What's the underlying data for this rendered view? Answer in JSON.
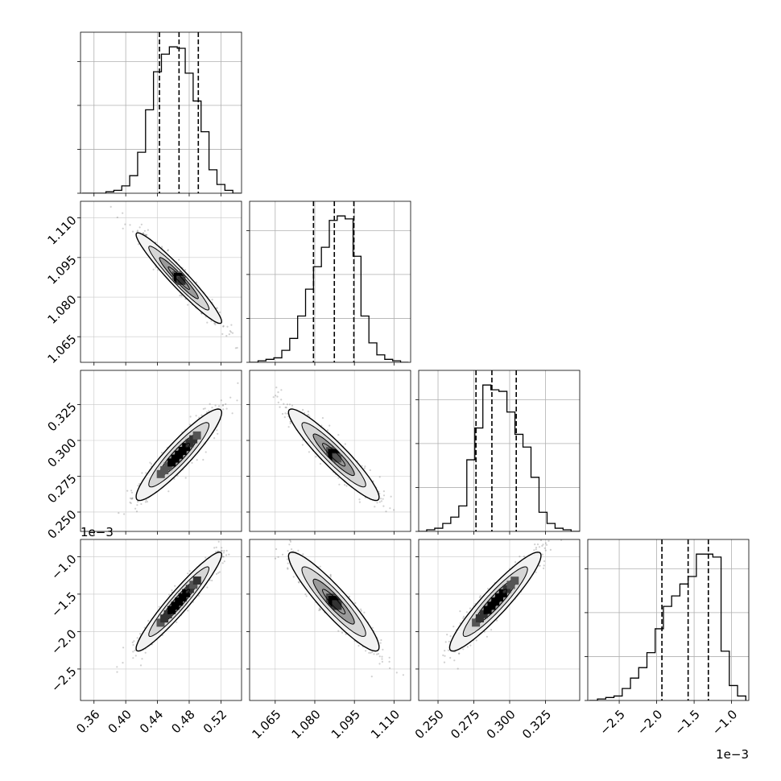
{
  "chart_data": {
    "type": "corner",
    "grid": true,
    "parameters": [
      {
        "range": [
          0.343,
          0.546
        ],
        "ticks": [
          0.36,
          0.4,
          0.44,
          0.48,
          0.52
        ],
        "tick_labels": [
          "0.36",
          "0.40",
          "0.44",
          "0.48",
          "0.52"
        ],
        "quantiles": [
          0.4425,
          0.4672,
          0.4915
        ],
        "hist": {
          "edges": [
            0.345,
            0.355,
            0.365,
            0.375,
            0.385,
            0.395,
            0.405,
            0.415,
            0.425,
            0.435,
            0.445,
            0.455,
            0.465,
            0.475,
            0.485,
            0.495,
            0.505,
            0.515,
            0.525,
            0.535,
            0.545
          ],
          "counts": [
            0,
            0,
            0,
            1,
            2,
            5,
            12,
            28,
            57,
            83,
            95,
            100,
            99,
            82,
            63,
            42,
            16,
            6,
            2,
            0
          ]
        }
      },
      {
        "range": [
          1.0553,
          1.1163
        ],
        "ticks": [
          1.065,
          1.08,
          1.095,
          1.11
        ],
        "tick_labels": [
          "1.065",
          "1.080",
          "1.095",
          "1.110"
        ],
        "quantiles": [
          1.0795,
          1.0874,
          1.0948
        ],
        "hist": {
          "edges": [
            1.0555,
            1.0585,
            1.0615,
            1.0645,
            1.0675,
            1.0705,
            1.0735,
            1.0765,
            1.0795,
            1.0825,
            1.0855,
            1.0885,
            1.0915,
            1.0945,
            1.0975,
            1.1005,
            1.1035,
            1.1065,
            1.1095,
            1.1125,
            1.1155
          ],
          "counts": [
            0,
            1,
            2,
            3,
            8,
            16,
            31,
            49,
            64,
            77,
            95,
            98,
            96,
            71,
            31,
            13,
            5,
            2,
            1,
            0
          ]
        }
      },
      {
        "range": [
          0.2365,
          0.3489
        ],
        "ticks": [
          0.25,
          0.275,
          0.3,
          0.325
        ],
        "tick_labels": [
          "0.250",
          "0.275",
          "0.300",
          "0.325"
        ],
        "quantiles": [
          0.2765,
          0.2876,
          0.3046
        ],
        "hist": {
          "edges": [
            0.2365,
            0.2421,
            0.2477,
            0.2533,
            0.2589,
            0.2645,
            0.2701,
            0.2757,
            0.2813,
            0.2869,
            0.2925,
            0.2981,
            0.3037,
            0.3093,
            0.3149,
            0.3205,
            0.3261,
            0.3317,
            0.3373,
            0.3429,
            0.3489
          ],
          "counts": [
            0,
            1,
            2,
            5,
            9,
            16,
            45,
            65,
            92,
            89,
            88,
            75,
            61,
            53,
            34,
            12,
            5,
            2,
            1,
            0
          ]
        }
      },
      {
        "range": [
          -2.92,
          -0.77
        ],
        "ticks": [
          -2.5,
          -2.0,
          -1.5,
          -1.0
        ],
        "tick_labels": [
          "−2.5",
          "−2.0",
          "−1.5",
          "−1.0"
        ],
        "offset": "1e−3",
        "quantiles": [
          -1.93,
          -1.58,
          -1.31
        ],
        "hist": {
          "edges": [
            -2.9,
            -2.79,
            -2.68,
            -2.57,
            -2.46,
            -2.35,
            -2.24,
            -2.13,
            -2.02,
            -1.91,
            -1.8,
            -1.69,
            -1.58,
            -1.47,
            -1.36,
            -1.25,
            -1.14,
            -1.03,
            -0.92,
            -0.81
          ],
          "counts": [
            0,
            1,
            2,
            3,
            8,
            15,
            22,
            32,
            48,
            63,
            70,
            78,
            83,
            98,
            98,
            96,
            33,
            10,
            3
          ]
        }
      }
    ],
    "scatter": [
      {
        "row": 1,
        "col": 0,
        "center": [
          0.467,
          1.0872
        ],
        "sd": [
          0.0245,
          0.0078
        ],
        "rho": -0.96
      },
      {
        "row": 2,
        "col": 0,
        "center": [
          0.467,
          0.29
        ],
        "sd": [
          0.0245,
          0.0145
        ],
        "rho": 0.92
      },
      {
        "row": 2,
        "col": 1,
        "center": [
          1.0872,
          0.29
        ],
        "sd": [
          0.0078,
          0.0145
        ],
        "rho": -0.93
      },
      {
        "row": 3,
        "col": 0,
        "center": [
          0.467,
          -1.6
        ],
        "sd": [
          0.0245,
          0.3
        ],
        "rho": 0.95
      },
      {
        "row": 3,
        "col": 1,
        "center": [
          1.0872,
          -1.6
        ],
        "sd": [
          0.0078,
          0.3
        ],
        "rho": -0.92
      },
      {
        "row": 3,
        "col": 2,
        "center": [
          0.29,
          -1.6
        ],
        "sd": [
          0.0145,
          0.3
        ],
        "rho": 0.93
      }
    ]
  }
}
